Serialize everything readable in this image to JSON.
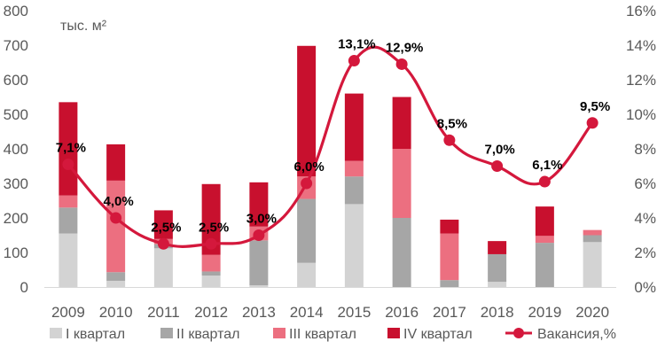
{
  "chart_data": {
    "type": "bar",
    "unit_label": "тыс. м²",
    "categories": [
      "2009",
      "2010",
      "2011",
      "2012",
      "2013",
      "2014",
      "2015",
      "2016",
      "2017",
      "2018",
      "2019",
      "2020"
    ],
    "series": [
      {
        "name": "I квартал",
        "type": "bar",
        "color": "#d3d3d3",
        "values": [
          155,
          18,
          112,
          33,
          5,
          70,
          240,
          0,
          0,
          15,
          0,
          130
        ]
      },
      {
        "name": "II квартал",
        "type": "bar",
        "color": "#a6a6a6",
        "values": [
          75,
          25,
          12,
          12,
          130,
          185,
          80,
          200,
          20,
          80,
          128,
          20
        ]
      },
      {
        "name": "III квартал",
        "type": "bar",
        "color": "#ec6f80",
        "values": [
          35,
          265,
          15,
          48,
          40,
          65,
          45,
          200,
          135,
          0,
          20,
          15
        ]
      },
      {
        "name": "IV квартал",
        "type": "bar",
        "color": "#c8102e",
        "values": [
          270,
          105,
          83,
          205,
          128,
          378,
          195,
          150,
          40,
          38,
          85,
          0
        ]
      },
      {
        "name": "Вакансия,%",
        "type": "line",
        "axis": "right",
        "color": "#d4183c",
        "values": [
          7.1,
          4.0,
          2.5,
          2.5,
          3.0,
          6.0,
          13.1,
          12.9,
          8.5,
          7.0,
          6.1,
          9.5
        ]
      }
    ],
    "point_labels": [
      "7,1%",
      "4,0%",
      "2,5%",
      "2,5%",
      "3,0%",
      "6,0%",
      "13,1%",
      "12,9%",
      "8,5%",
      "7,0%",
      "6,1%",
      "9,5%"
    ],
    "left_axis": {
      "min": 0,
      "max": 800,
      "step": 100,
      "ticks": [
        "0",
        "100",
        "200",
        "300",
        "400",
        "500",
        "600",
        "700",
        "800"
      ]
    },
    "right_axis": {
      "min": 0,
      "max": 16,
      "step": 2,
      "ticks": [
        "0%",
        "2%",
        "4%",
        "6%",
        "8%",
        "10%",
        "12%",
        "14%",
        "16%"
      ]
    },
    "grid": false,
    "legend_position": "bottom"
  }
}
